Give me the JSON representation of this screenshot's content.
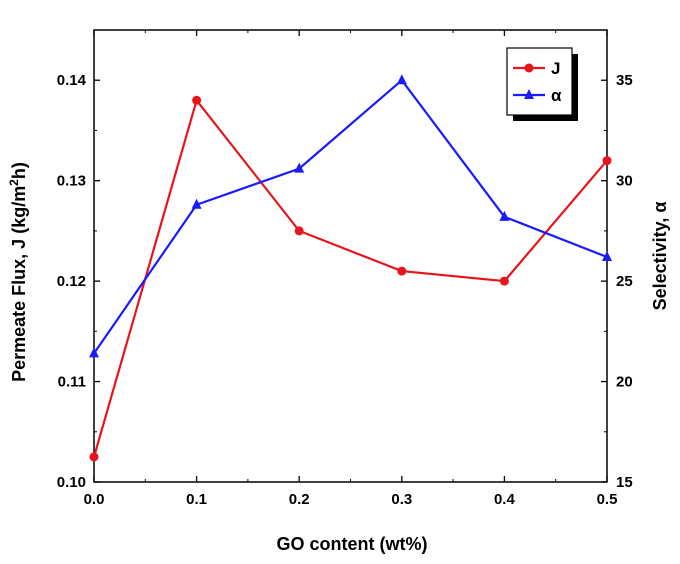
{
  "chart_data": {
    "type": "line",
    "x": [
      0.0,
      0.1,
      0.2,
      0.3,
      0.4,
      0.5
    ],
    "xlabel": "GO content (wt%)",
    "xlim": [
      0.0,
      0.5
    ],
    "xticks": [
      "0.0",
      "0.1",
      "0.2",
      "0.3",
      "0.4",
      "0.5"
    ],
    "ylabel_left": "Permeate Flux, J (kg/m²h)",
    "ylabel_left_parts": [
      "Permeate Flux, J (kg/m",
      "2",
      "h)"
    ],
    "ylim_left": [
      0.1,
      0.145
    ],
    "yticks_left": [
      "0.10",
      "0.11",
      "0.12",
      "0.13",
      "0.14"
    ],
    "ylabel_right": "Selectivity, α",
    "ylim_right": [
      15,
      37.5
    ],
    "yticks_right": [
      "15",
      "20",
      "25",
      "30",
      "35"
    ],
    "grid": false,
    "legend_position": "top-right",
    "series": [
      {
        "name": "J",
        "axis": "left",
        "color": "#e8141c",
        "marker": "circle",
        "values": [
          0.1025,
          0.138,
          0.125,
          0.121,
          0.12,
          0.132
        ]
      },
      {
        "name": "α",
        "axis": "right",
        "color": "#1a1aff",
        "marker": "triangle",
        "values": [
          21.4,
          28.8,
          30.6,
          35.0,
          28.2,
          26.2
        ]
      }
    ]
  }
}
